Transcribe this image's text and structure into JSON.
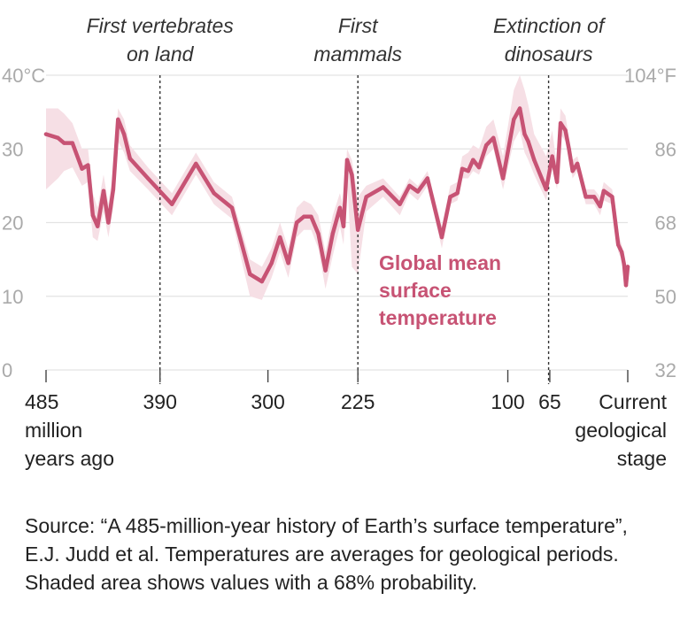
{
  "chart_data": {
    "type": "line",
    "x_unit": "million years ago",
    "xlim": [
      485,
      0
    ],
    "ylim_c": [
      0,
      40
    ],
    "ylim_f": [
      32,
      104
    ],
    "y_ticks_c": [
      {
        "value": 0,
        "label": "0"
      },
      {
        "value": 10,
        "label": "10"
      },
      {
        "value": 20,
        "label": "20"
      },
      {
        "value": 30,
        "label": "30"
      },
      {
        "value": 40,
        "label": "40°C"
      }
    ],
    "y_ticks_f": [
      {
        "value": 32,
        "label": "32"
      },
      {
        "value": 50,
        "label": "50"
      },
      {
        "value": 68,
        "label": "68"
      },
      {
        "value": 86,
        "label": "86"
      },
      {
        "value": 104,
        "label": "104°F"
      }
    ],
    "x_ticks": [
      {
        "value": 485,
        "lines": [
          "485",
          "million",
          "years ago"
        ],
        "align": "start"
      },
      {
        "value": 390,
        "lines": [
          "390"
        ],
        "align": "middle"
      },
      {
        "value": 300,
        "lines": [
          "300"
        ],
        "align": "middle"
      },
      {
        "value": 225,
        "lines": [
          "225"
        ],
        "align": "middle"
      },
      {
        "value": 100,
        "lines": [
          "100"
        ],
        "align": "middle"
      },
      {
        "value": 65,
        "lines": [
          "65"
        ],
        "align": "middle"
      },
      {
        "value": 0,
        "lines": [
          "Current",
          "geological",
          "stage"
        ],
        "align": "end"
      }
    ],
    "events": [
      {
        "x": 390,
        "lines": [
          "First vertebrates",
          "on land"
        ]
      },
      {
        "x": 225,
        "lines": [
          "First",
          "mammals"
        ]
      },
      {
        "x": 66,
        "lines": [
          "Extinction of",
          "dinosaurs"
        ]
      }
    ],
    "series": [
      {
        "name": "Global mean surface temperature",
        "label_lines": [
          "Global mean",
          "surface",
          "temperature"
        ],
        "color": "#c75374",
        "band_color": "#f6dfe5",
        "points": [
          {
            "x": 485,
            "y": 32.0,
            "lo": 24.5,
            "hi": 35.5
          },
          {
            "x": 475,
            "y": 31.5,
            "lo": 26.0,
            "hi": 35.5
          },
          {
            "x": 470,
            "y": 30.8,
            "lo": 27.0,
            "hi": 34.8
          },
          {
            "x": 463,
            "y": 30.8,
            "lo": 27.5,
            "hi": 33.5
          },
          {
            "x": 455,
            "y": 27.3,
            "lo": 25.0,
            "hi": 30.0
          },
          {
            "x": 450,
            "y": 27.8,
            "lo": 25.5,
            "hi": 30.0
          },
          {
            "x": 446,
            "y": 21.0,
            "lo": 18.0,
            "hi": 24.0
          },
          {
            "x": 442,
            "y": 19.5,
            "lo": 17.5,
            "hi": 22.0
          },
          {
            "x": 437,
            "y": 24.3,
            "lo": 21.5,
            "hi": 26.5
          },
          {
            "x": 433,
            "y": 20.0,
            "lo": 18.0,
            "hi": 22.5
          },
          {
            "x": 429,
            "y": 24.5,
            "lo": 22.0,
            "hi": 27.0
          },
          {
            "x": 425,
            "y": 34.0,
            "lo": 31.0,
            "hi": 35.5
          },
          {
            "x": 420,
            "y": 32.0,
            "lo": 29.5,
            "hi": 34.0
          },
          {
            "x": 415,
            "y": 28.7,
            "lo": 27.0,
            "hi": 30.5
          },
          {
            "x": 400,
            "y": 26.0,
            "lo": 24.5,
            "hi": 27.5
          },
          {
            "x": 380,
            "y": 22.5,
            "lo": 21.0,
            "hi": 24.0
          },
          {
            "x": 360,
            "y": 28.0,
            "lo": 26.5,
            "hi": 29.5
          },
          {
            "x": 345,
            "y": 24.0,
            "lo": 22.5,
            "hi": 25.5
          },
          {
            "x": 330,
            "y": 22.0,
            "lo": 20.5,
            "hi": 23.5
          },
          {
            "x": 315,
            "y": 13.0,
            "lo": 10.0,
            "hi": 15.0
          },
          {
            "x": 305,
            "y": 12.0,
            "lo": 9.5,
            "hi": 14.0
          },
          {
            "x": 297,
            "y": 14.5,
            "lo": 12.5,
            "hi": 16.5
          },
          {
            "x": 290,
            "y": 18.0,
            "lo": 16.0,
            "hi": 20.0
          },
          {
            "x": 283,
            "y": 14.5,
            "lo": 12.5,
            "hi": 16.5
          },
          {
            "x": 276,
            "y": 20.0,
            "lo": 18.0,
            "hi": 22.0
          },
          {
            "x": 270,
            "y": 20.8,
            "lo": 19.0,
            "hi": 23.0
          },
          {
            "x": 264,
            "y": 20.8,
            "lo": 19.0,
            "hi": 22.5
          },
          {
            "x": 258,
            "y": 18.5,
            "lo": 16.5,
            "hi": 21.0
          },
          {
            "x": 252,
            "y": 13.5,
            "lo": 11.0,
            "hi": 16.0
          },
          {
            "x": 246,
            "y": 18.5,
            "lo": 15.5,
            "hi": 21.0
          },
          {
            "x": 240,
            "y": 22.0,
            "lo": 19.5,
            "hi": 24.0
          },
          {
            "x": 237,
            "y": 19.5,
            "lo": 17.0,
            "hi": 22.0
          },
          {
            "x": 234,
            "y": 28.5,
            "lo": 26.0,
            "hi": 30.0
          },
          {
            "x": 230,
            "y": 26.5,
            "lo": 14.0,
            "hi": 28.5
          },
          {
            "x": 225,
            "y": 19.0,
            "lo": 13.0,
            "hi": 23.5
          },
          {
            "x": 218,
            "y": 23.5,
            "lo": 21.5,
            "hi": 25.0
          },
          {
            "x": 204,
            "y": 24.8,
            "lo": 23.5,
            "hi": 26.0
          },
          {
            "x": 190,
            "y": 22.5,
            "lo": 21.0,
            "hi": 23.5
          },
          {
            "x": 182,
            "y": 25.0,
            "lo": 24.0,
            "hi": 26.0
          },
          {
            "x": 175,
            "y": 24.2,
            "lo": 23.0,
            "hi": 25.0
          },
          {
            "x": 167,
            "y": 26.0,
            "lo": 25.0,
            "hi": 27.0
          },
          {
            "x": 155,
            "y": 18.0,
            "lo": 16.5,
            "hi": 19.5
          },
          {
            "x": 148,
            "y": 23.5,
            "lo": 22.5,
            "hi": 25.0
          },
          {
            "x": 142,
            "y": 24.0,
            "lo": 23.0,
            "hi": 25.5
          },
          {
            "x": 138,
            "y": 27.3,
            "lo": 26.0,
            "hi": 29.0
          },
          {
            "x": 133,
            "y": 27.0,
            "lo": 26.0,
            "hi": 29.5
          },
          {
            "x": 129,
            "y": 28.5,
            "lo": 27.0,
            "hi": 30.5
          },
          {
            "x": 124,
            "y": 27.5,
            "lo": 26.5,
            "hi": 30.0
          },
          {
            "x": 118,
            "y": 30.5,
            "lo": 29.0,
            "hi": 33.0
          },
          {
            "x": 112,
            "y": 31.5,
            "lo": 30.0,
            "hi": 34.0
          },
          {
            "x": 104,
            "y": 26.0,
            "lo": 24.5,
            "hi": 29.0
          },
          {
            "x": 95,
            "y": 34.0,
            "lo": 31.0,
            "hi": 38.0
          },
          {
            "x": 90,
            "y": 35.5,
            "lo": 32.5,
            "hi": 40.0
          },
          {
            "x": 86,
            "y": 32.0,
            "lo": 29.5,
            "hi": 38.0
          },
          {
            "x": 83,
            "y": 31.0,
            "lo": 28.5,
            "hi": 36.0
          },
          {
            "x": 78,
            "y": 28.5,
            "lo": 26.5,
            "hi": 32.0
          },
          {
            "x": 68,
            "y": 24.5,
            "lo": 23.0,
            "hi": 29.0
          },
          {
            "x": 63,
            "y": 29.0,
            "lo": 27.5,
            "hi": 32.5
          },
          {
            "x": 59,
            "y": 25.5,
            "lo": 24.5,
            "hi": 27.5
          },
          {
            "x": 56,
            "y": 33.5,
            "lo": 32.0,
            "hi": 35.5
          },
          {
            "x": 52,
            "y": 32.5,
            "lo": 31.0,
            "hi": 34.5
          },
          {
            "x": 49,
            "y": 30.0,
            "lo": 28.5,
            "hi": 31.5
          },
          {
            "x": 46,
            "y": 27.0,
            "lo": 26.0,
            "hi": 28.5
          },
          {
            "x": 42,
            "y": 28.0,
            "lo": 27.0,
            "hi": 29.0
          },
          {
            "x": 35,
            "y": 23.5,
            "lo": 22.5,
            "hi": 24.5
          },
          {
            "x": 28,
            "y": 23.5,
            "lo": 22.5,
            "hi": 24.5
          },
          {
            "x": 23,
            "y": 22.2,
            "lo": 21.0,
            "hi": 23.5
          },
          {
            "x": 20,
            "y": 24.3,
            "lo": 23.0,
            "hi": 25.5
          },
          {
            "x": 13,
            "y": 23.5,
            "lo": 22.5,
            "hi": 24.5
          },
          {
            "x": 8,
            "y": 17.0,
            "lo": 16.0,
            "hi": 18.5
          },
          {
            "x": 5,
            "y": 16.0,
            "lo": 15.0,
            "hi": 17.0
          },
          {
            "x": 3,
            "y": 14.3,
            "lo": 13.0,
            "hi": 15.5
          },
          {
            "x": 1.5,
            "y": 11.5,
            "lo": 11.0,
            "hi": 12.5
          },
          {
            "x": 0,
            "y": 14.0,
            "lo": 13.0,
            "hi": 15.0
          }
        ]
      }
    ]
  },
  "source_note": "Source: “A 485-million-year history of Earth’s surface temperature”, E.J. Judd et al. Temperatures are averages for geological periods. Shaded area shows values with a 68% probability."
}
